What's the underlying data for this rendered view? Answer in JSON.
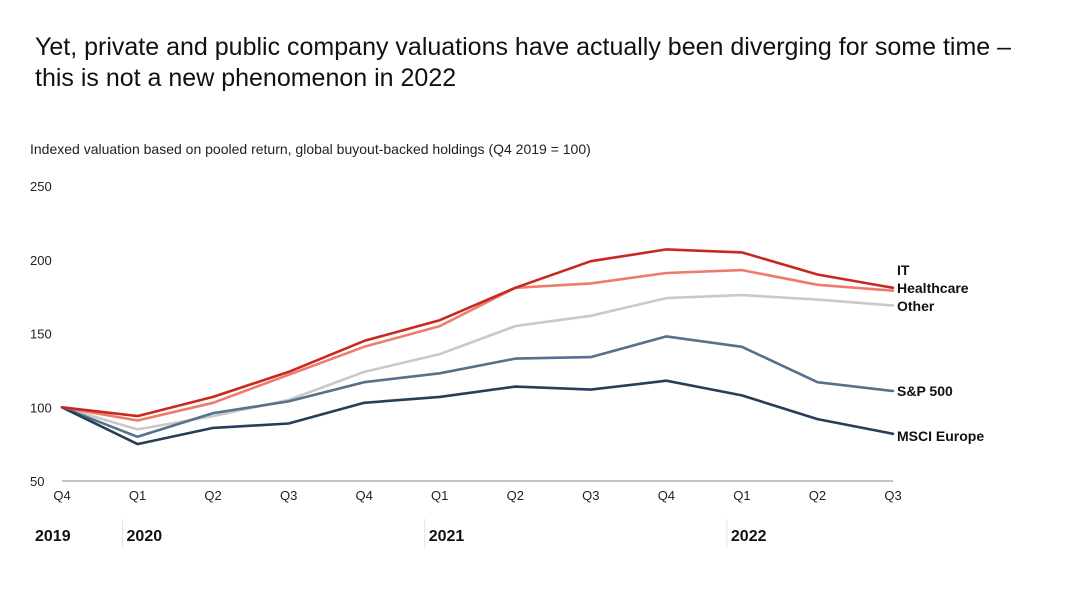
{
  "title": "Yet, private and public company valuations have actually been diverging for some time – this is not a new phenomenon in 2022",
  "chart_data": {
    "type": "line",
    "title": "",
    "subtitle": "Indexed valuation based on pooled return, global buyout-backed holdings (Q4 2019 = 100)",
    "categories": [
      "Q4",
      "Q1",
      "Q2",
      "Q3",
      "Q4",
      "Q1",
      "Q2",
      "Q3",
      "Q4",
      "Q1",
      "Q2",
      "Q3"
    ],
    "years": [
      {
        "label": "2019",
        "start_index": 0
      },
      {
        "label": "2020",
        "start_index": 1
      },
      {
        "label": "2021",
        "start_index": 5
      },
      {
        "label": "2022",
        "start_index": 9
      }
    ],
    "ylim": [
      50,
      250
    ],
    "yticks": [
      50,
      100,
      150,
      200,
      250
    ],
    "grid": false,
    "series": [
      {
        "name": "IT",
        "color": "#c8291e",
        "values": [
          100,
          94,
          107,
          124,
          145,
          159,
          181,
          199,
          207,
          205,
          190,
          181
        ]
      },
      {
        "name": "Healthcare",
        "color": "#ee7b6c",
        "values": [
          100,
          91,
          103,
          122,
          141,
          155,
          181,
          184,
          191,
          193,
          183,
          179
        ]
      },
      {
        "name": "Other",
        "color": "#c9c9c9",
        "values": [
          100,
          85,
          94,
          105,
          124,
          136,
          155,
          162,
          174,
          176,
          173,
          169
        ]
      },
      {
        "name": "S&P 500",
        "color": "#57708b",
        "values": [
          100,
          80,
          96,
          104,
          117,
          123,
          133,
          134,
          148,
          141,
          117,
          111
        ]
      },
      {
        "name": "MSCI Europe",
        "color": "#263e58",
        "values": [
          100,
          75,
          86,
          89,
          103,
          107,
          114,
          112,
          118,
          108,
          92,
          82
        ]
      }
    ]
  }
}
